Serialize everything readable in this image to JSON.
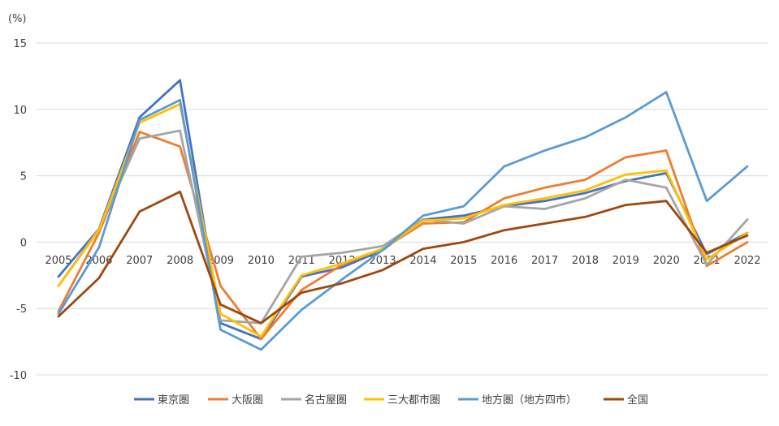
{
  "chart_data": {
    "type": "line",
    "unit_label": "(%)",
    "categories": [
      "2005",
      "2006",
      "2007",
      "2008",
      "2009",
      "2010",
      "2011",
      "2012",
      "2013",
      "2014",
      "2015",
      "2016",
      "2017",
      "2018",
      "2019",
      "2020",
      "2021",
      "2022"
    ],
    "ylim": [
      -10,
      15
    ],
    "yticks": [
      "15",
      "10",
      "5",
      "0",
      "-5",
      "-10"
    ],
    "grid": true,
    "legend_position": "bottom",
    "series": [
      {
        "name": "東京圏",
        "color": "#4472C4",
        "values": [
          -2.6,
          1.0,
          9.4,
          12.2,
          -6.1,
          -7.3,
          -2.6,
          -1.9,
          -0.6,
          1.7,
          2.0,
          2.7,
          3.1,
          3.7,
          4.6,
          5.2,
          -0.9,
          0.7
        ]
      },
      {
        "name": "大阪圏",
        "color": "#ED7D31",
        "values": [
          -5.2,
          0.7,
          8.3,
          7.2,
          -3.3,
          -7.3,
          -3.6,
          -1.7,
          -0.5,
          1.4,
          1.5,
          3.3,
          4.1,
          4.7,
          6.4,
          6.9,
          -1.8,
          0.0
        ]
      },
      {
        "name": "名古屋圏",
        "color": "#A5A5A5",
        "values": [
          -3.3,
          1.0,
          7.8,
          8.4,
          -5.9,
          -6.1,
          -1.1,
          -0.8,
          -0.3,
          1.7,
          1.4,
          2.7,
          2.5,
          3.3,
          4.7,
          4.1,
          -1.7,
          1.7
        ]
      },
      {
        "name": "三大都市圏",
        "color": "#FFC000",
        "values": [
          -3.3,
          0.9,
          9.0,
          10.4,
          -5.4,
          -7.1,
          -2.5,
          -1.6,
          -0.5,
          1.6,
          1.8,
          2.8,
          3.3,
          3.9,
          5.1,
          5.4,
          -1.3,
          0.7
        ]
      },
      {
        "name": "地方圏（地方四市）",
        "color": "#5B9BD5",
        "values": [
          -5.4,
          -0.4,
          9.2,
          10.7,
          -6.6,
          -8.1,
          -5.1,
          -2.8,
          -0.6,
          2.0,
          2.7,
          5.7,
          6.9,
          7.9,
          9.4,
          11.3,
          3.1,
          5.7
        ]
      },
      {
        "name": "全国",
        "color": "#9E480E",
        "values": [
          -5.6,
          -2.7,
          2.3,
          3.8,
          -4.7,
          -6.1,
          -3.8,
          -3.1,
          -2.1,
          -0.5,
          0.0,
          0.9,
          1.4,
          1.9,
          2.8,
          3.1,
          -0.8,
          0.5
        ]
      }
    ]
  }
}
